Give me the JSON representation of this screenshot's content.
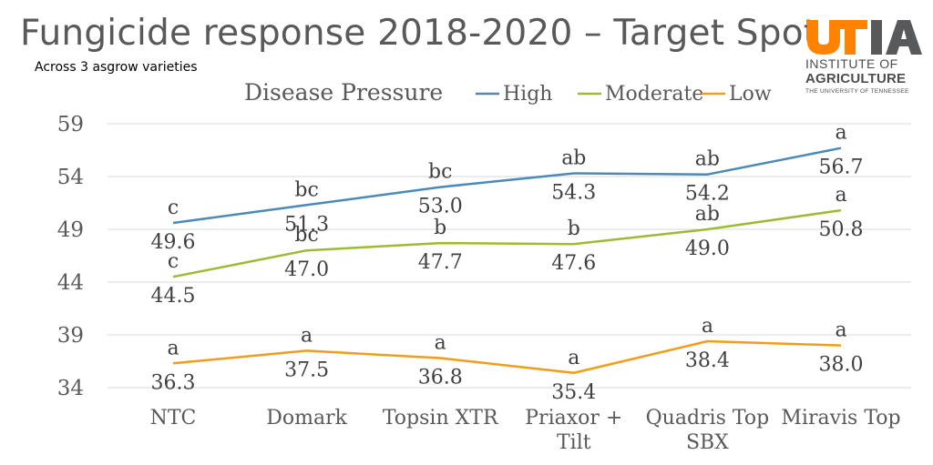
{
  "title": "Fungicide response 2018-2020 – Target Spot",
  "subtitle": "Across 3 asgrow varieties",
  "logo": {
    "mark_letters": "UTIA",
    "line1": "INSTITUTE OF",
    "line2": "AGRICULTURE",
    "line3": "THE UNIVERSITY OF TENNESSEE",
    "colors": {
      "orange": "#ff8200",
      "gray": "#58595b"
    }
  },
  "chart_data": {
    "type": "line",
    "title": "",
    "legend": {
      "title": "Disease Pressure",
      "placement": "top"
    },
    "categories": [
      [
        "NTC"
      ],
      [
        "Domark"
      ],
      [
        "Topsin XTR"
      ],
      [
        "Priaxor +",
        "Tilt"
      ],
      [
        "Quadris Top",
        "SBX"
      ],
      [
        "Miravis Top"
      ]
    ],
    "ylim": [
      34,
      59
    ],
    "yticks": [
      34,
      39,
      44,
      49,
      54,
      59
    ],
    "grid": true,
    "series": [
      {
        "name": "High",
        "color": "#4a8ab8",
        "values": [
          49.6,
          51.3,
          53.0,
          54.3,
          54.2,
          56.7
        ],
        "letters": [
          "c",
          "bc",
          "bc",
          "ab",
          "ab",
          "a"
        ]
      },
      {
        "name": "Moderate",
        "color": "#9bbb34",
        "values": [
          44.5,
          47.0,
          47.7,
          47.6,
          49.0,
          50.8
        ],
        "letters": [
          "c",
          "bc",
          "b",
          "b",
          "ab",
          "a"
        ]
      },
      {
        "name": "Low",
        "color": "#f39c1c",
        "values": [
          36.3,
          37.5,
          36.8,
          35.4,
          38.4,
          38.0
        ],
        "letters": [
          "a",
          "a",
          "a",
          "a",
          "a",
          "a"
        ]
      }
    ]
  }
}
